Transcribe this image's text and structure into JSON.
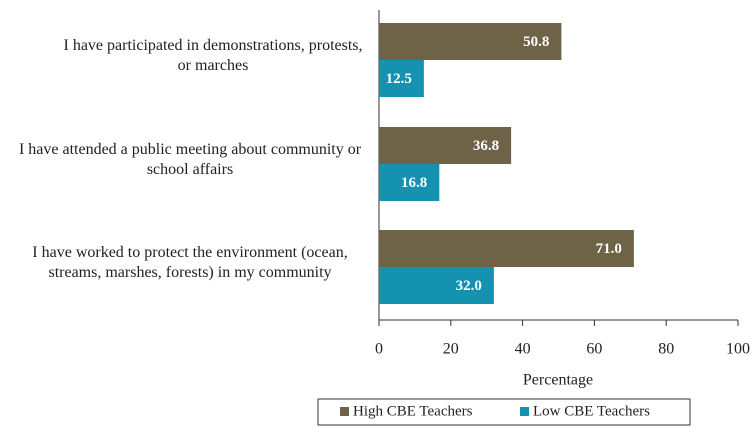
{
  "chart_data": {
    "type": "hbar",
    "categories": [
      "I have participated in demonstrations, protests, or marches",
      "I have attended a public meeting about community or school affairs",
      "I have worked to protect the environment (ocean, streams, marshes, forests) in my community"
    ],
    "series": [
      {
        "name": "High CBE Teachers",
        "color": "#6e6347",
        "values": [
          50.8,
          36.8,
          71.0
        ],
        "value_labels": [
          "50.8",
          "36.8",
          "71.0"
        ]
      },
      {
        "name": "Low CBE Teachers",
        "color": "#1592b0",
        "values": [
          12.5,
          16.8,
          32.0
        ],
        "value_labels": [
          "12.5",
          "16.8",
          "32.0"
        ]
      }
    ],
    "xlabel": "Percentage",
    "xlim": [
      0,
      100
    ],
    "xticks": [
      0,
      20,
      40,
      60,
      80,
      100
    ],
    "legend": "bottom"
  }
}
